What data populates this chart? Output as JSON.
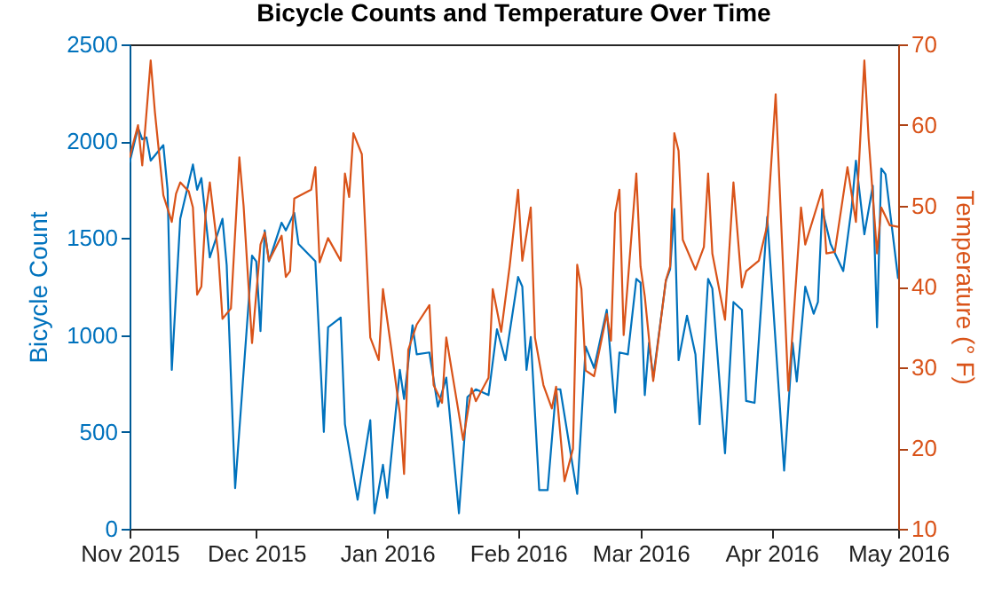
{
  "chart_data": {
    "type": "line",
    "title": "Bicycle Counts and Temperature Over Time",
    "ylabel": "Bicycle Count",
    "y2label": "Temperature (° F)",
    "xlim": [
      "2015-11-01",
      "2016-05-01"
    ],
    "xticks": [
      {
        "value": "2015-11-01",
        "label": "Nov 2015"
      },
      {
        "value": "2015-12-01",
        "label": "Dec 2015"
      },
      {
        "value": "2016-01-01",
        "label": "Jan 2016"
      },
      {
        "value": "2016-02-01",
        "label": "Feb 2016"
      },
      {
        "value": "2016-03-01",
        "label": "Mar 2016"
      },
      {
        "value": "2016-04-01",
        "label": "Apr 2016"
      },
      {
        "value": "2016-05-01",
        "label": "May 2016"
      }
    ],
    "ylim": [
      0,
      2500
    ],
    "yticks": [
      0,
      500,
      1000,
      1500,
      2000,
      2500
    ],
    "y2lim": [
      10,
      70
    ],
    "y2ticks": [
      10,
      20,
      30,
      40,
      50,
      60,
      70
    ],
    "grid": false,
    "series": [
      {
        "color": "#0072bd",
        "x": [
          "2015-11-01",
          "2015-11-03",
          "2015-11-04",
          "2015-11-05",
          "2015-11-06",
          "2015-11-09",
          "2015-11-10",
          "2015-11-11",
          "2015-11-13",
          "2015-11-16",
          "2015-11-17",
          "2015-11-18",
          "2015-11-20",
          "2015-11-23",
          "2015-11-24",
          "2015-11-26",
          "2015-11-30",
          "2015-12-01",
          "2015-12-02",
          "2015-12-03",
          "2015-12-04",
          "2015-12-07",
          "2015-12-08",
          "2015-12-10",
          "2015-12-11",
          "2015-12-15",
          "2015-12-17",
          "2015-12-18",
          "2015-12-21",
          "2015-12-22",
          "2015-12-25",
          "2015-12-28",
          "2015-12-29",
          "2015-12-31",
          "2016-01-01",
          "2016-01-04",
          "2016-01-05",
          "2016-01-07",
          "2016-01-08",
          "2016-01-11",
          "2016-01-13",
          "2016-01-15",
          "2016-01-18",
          "2016-01-20",
          "2016-01-22",
          "2016-01-25",
          "2016-01-27",
          "2016-01-29",
          "2016-02-01",
          "2016-02-02",
          "2016-02-03",
          "2016-02-04",
          "2016-02-06",
          "2016-02-08",
          "2016-02-10",
          "2016-02-11",
          "2016-02-15",
          "2016-02-17",
          "2016-02-19",
          "2016-02-22",
          "2016-02-24",
          "2016-02-25",
          "2016-02-27",
          "2016-02-29",
          "2016-03-01",
          "2016-03-02",
          "2016-03-03",
          "2016-03-04",
          "2016-03-07",
          "2016-03-08",
          "2016-03-09",
          "2016-03-10",
          "2016-03-12",
          "2016-03-14",
          "2016-03-15",
          "2016-03-17",
          "2016-03-18",
          "2016-03-21",
          "2016-03-23",
          "2016-03-25",
          "2016-03-26",
          "2016-03-28",
          "2016-03-31",
          "2016-04-04",
          "2016-04-06",
          "2016-04-07",
          "2016-04-09",
          "2016-04-11",
          "2016-04-12",
          "2016-04-13",
          "2016-04-15",
          "2016-04-18",
          "2016-04-20",
          "2016-04-21",
          "2016-04-23",
          "2016-04-25",
          "2016-04-26",
          "2016-04-27",
          "2016-04-28",
          "2016-05-01"
        ],
        "values": [
          1890,
          2070,
          2010,
          2020,
          1900,
          1980,
          1750,
          820,
          1600,
          1880,
          1750,
          1810,
          1400,
          1600,
          1360,
          210,
          1410,
          1380,
          1020,
          1540,
          1380,
          1580,
          1540,
          1630,
          1470,
          1380,
          500,
          1040,
          1090,
          540,
          150,
          560,
          80,
          330,
          160,
          820,
          670,
          1050,
          900,
          910,
          630,
          780,
          80,
          680,
          720,
          690,
          1030,
          870,
          1300,
          1250,
          820,
          990,
          200,
          200,
          720,
          720,
          180,
          940,
          830,
          1130,
          600,
          910,
          900,
          1290,
          1270,
          690,
          960,
          780,
          1280,
          1340,
          1650,
          870,
          1100,
          900,
          540,
          1290,
          1240,
          390,
          1170,
          1130,
          660,
          650,
          1610,
          300,
          960,
          760,
          1250,
          1110,
          1170,
          1650,
          1470,
          1330,
          1660,
          1900,
          1520,
          1770,
          1040,
          1860,
          1830,
          1290
        ]
      },
      {
        "color": "#d95319",
        "axis": "y2",
        "x": [
          "2015-11-01",
          "2015-11-03",
          "2015-11-04",
          "2015-11-06",
          "2015-11-07",
          "2015-11-09",
          "2015-11-11",
          "2015-11-12",
          "2015-11-13",
          "2015-11-15",
          "2015-11-16",
          "2015-11-17",
          "2015-11-18",
          "2015-11-19",
          "2015-11-20",
          "2015-11-22",
          "2015-11-23",
          "2015-11-25",
          "2015-11-27",
          "2015-11-28",
          "2015-11-30",
          "2015-12-02",
          "2015-12-03",
          "2015-12-04",
          "2015-12-07",
          "2015-12-08",
          "2015-12-09",
          "2015-12-10",
          "2015-12-14",
          "2015-12-15",
          "2015-12-16",
          "2015-12-18",
          "2015-12-21",
          "2015-12-22",
          "2015-12-23",
          "2015-12-24",
          "2015-12-26",
          "2015-12-28",
          "2015-12-30",
          "2015-12-31",
          "2016-01-02",
          "2016-01-04",
          "2016-01-05",
          "2016-01-06",
          "2016-01-08",
          "2016-01-11",
          "2016-01-12",
          "2016-01-14",
          "2016-01-15",
          "2016-01-19",
          "2016-01-21",
          "2016-01-22",
          "2016-01-25",
          "2016-01-26",
          "2016-01-28",
          "2016-01-30",
          "2016-02-01",
          "2016-02-02",
          "2016-02-04",
          "2016-02-05",
          "2016-02-07",
          "2016-02-09",
          "2016-02-10",
          "2016-02-12",
          "2016-02-14",
          "2016-02-15",
          "2016-02-16",
          "2016-02-17",
          "2016-02-19",
          "2016-02-22",
          "2016-02-23",
          "2016-02-24",
          "2016-02-25",
          "2016-02-26",
          "2016-02-29",
          "2016-03-01",
          "2016-03-02",
          "2016-03-04",
          "2016-03-07",
          "2016-03-08",
          "2016-03-09",
          "2016-03-10",
          "2016-03-11",
          "2016-03-14",
          "2016-03-16",
          "2016-03-17",
          "2016-03-18",
          "2016-03-21",
          "2016-03-23",
          "2016-03-25",
          "2016-03-26",
          "2016-03-29",
          "2016-03-31",
          "2016-04-02",
          "2016-04-05",
          "2016-04-06",
          "2016-04-08",
          "2016-04-09",
          "2016-04-13",
          "2016-04-14",
          "2016-04-16",
          "2016-04-19",
          "2016-04-21",
          "2016-04-23",
          "2016-04-24",
          "2016-04-26",
          "2016-04-27",
          "2016-04-29",
          "2016-05-01"
        ],
        "values": [
          56,
          60,
          55,
          68,
          61.6,
          51.3,
          48,
          51.5,
          52.9,
          51.8,
          49.8,
          39,
          40,
          49,
          52.9,
          44,
          36,
          37.3,
          56,
          50,
          33,
          45.2,
          46.7,
          43.2,
          46.3,
          41.2,
          41.9,
          50.9,
          52,
          54.8,
          43,
          46,
          43.2,
          54,
          51.1,
          59,
          56.4,
          33.7,
          30.9,
          39.7,
          32.2,
          24.3,
          16.8,
          32.2,
          35.3,
          37.7,
          27.8,
          25.6,
          33.7,
          21,
          27.4,
          25.8,
          28.7,
          39.7,
          34.4,
          42.5,
          52,
          43.2,
          49.8,
          33.7,
          27.8,
          24.9,
          27.6,
          15.9,
          19.9,
          42.7,
          39.7,
          29.6,
          28.9,
          36.6,
          33.3,
          49.1,
          52,
          34,
          54,
          42.5,
          38.8,
          28.3,
          40.8,
          42.5,
          59,
          56.8,
          45.8,
          42.1,
          44.9,
          54,
          44.1,
          35.9,
          52.9,
          39.9,
          41.9,
          43.2,
          47.6,
          63.8,
          27.1,
          34.4,
          49.8,
          45.2,
          52,
          44.1,
          44.3,
          54.8,
          48,
          68,
          58.4,
          44.1,
          49.8,
          47.6,
          47.4
        ]
      }
    ]
  }
}
